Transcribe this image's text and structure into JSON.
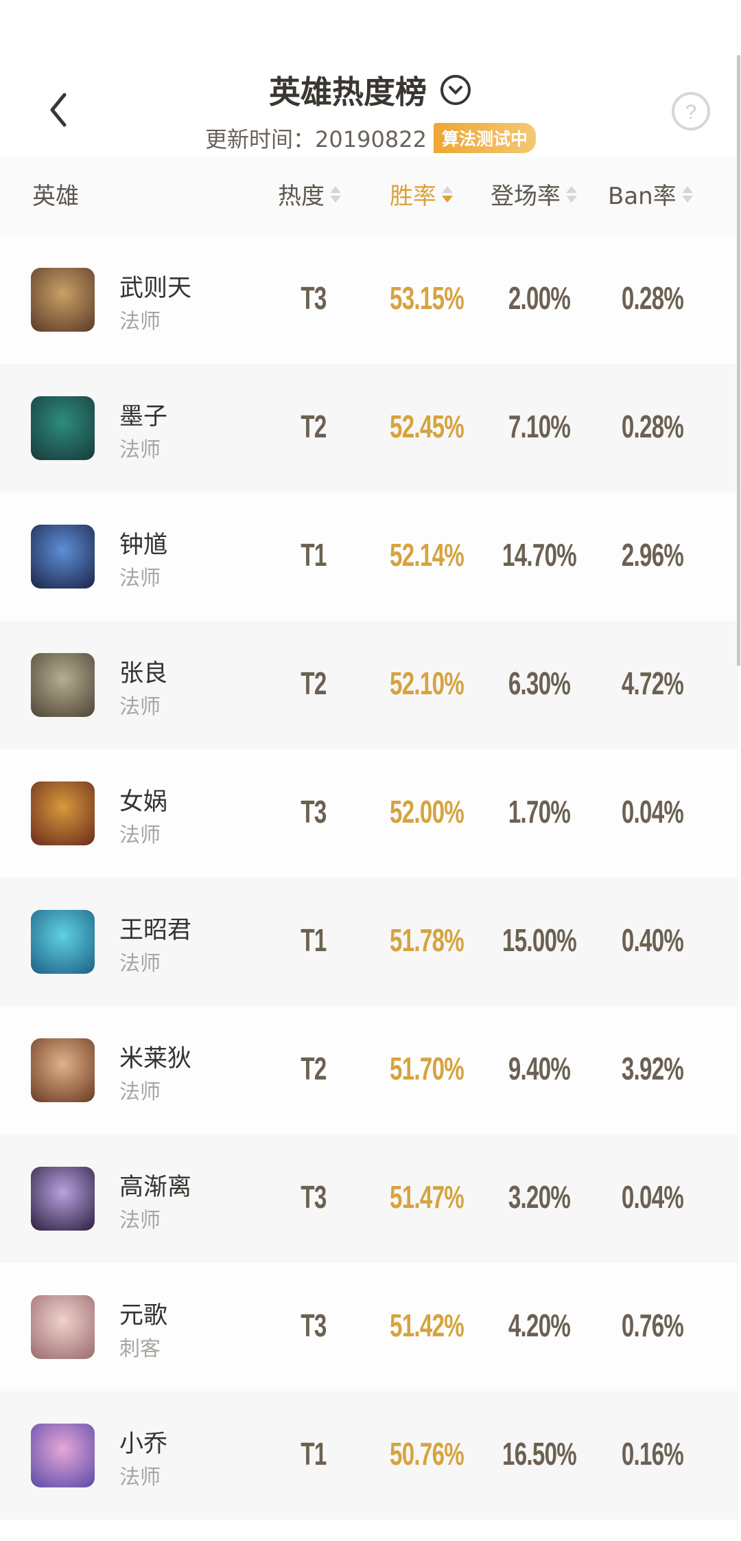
{
  "header": {
    "title": "英雄热度榜",
    "update_label": "更新时间：20190822",
    "badge": "算法测试中"
  },
  "columns": {
    "hero": "英雄",
    "heat": "热度",
    "win": "胜率",
    "pick": "登场率",
    "ban": "Ban率",
    "sorted_by": "胜率"
  },
  "heroes": [
    {
      "name": "武则天",
      "role": "法师",
      "tier": "T3",
      "win": "53.15%",
      "pick": "2.00%",
      "ban": "0.28%",
      "colors": [
        "#c9a066",
        "#5a3a28"
      ]
    },
    {
      "name": "墨子",
      "role": "法师",
      "tier": "T2",
      "win": "52.45%",
      "pick": "7.10%",
      "ban": "0.28%",
      "colors": [
        "#2d8c7e",
        "#173a3a"
      ]
    },
    {
      "name": "钟馗",
      "role": "法师",
      "tier": "T1",
      "win": "52.14%",
      "pick": "14.70%",
      "ban": "2.96%",
      "colors": [
        "#5d8fd6",
        "#1c2448"
      ]
    },
    {
      "name": "张良",
      "role": "法师",
      "tier": "T2",
      "win": "52.10%",
      "pick": "6.30%",
      "ban": "4.72%",
      "colors": [
        "#b7ad90",
        "#4c4437"
      ]
    },
    {
      "name": "女娲",
      "role": "法师",
      "tier": "T3",
      "win": "52.00%",
      "pick": "1.70%",
      "ban": "0.04%",
      "colors": [
        "#d79a3c",
        "#6a2a1c"
      ]
    },
    {
      "name": "王昭君",
      "role": "法师",
      "tier": "T1",
      "win": "51.78%",
      "pick": "15.00%",
      "ban": "0.40%",
      "colors": [
        "#5fd1e0",
        "#1d5f86"
      ]
    },
    {
      "name": "米莱狄",
      "role": "法师",
      "tier": "T2",
      "win": "51.70%",
      "pick": "9.40%",
      "ban": "3.92%",
      "colors": [
        "#e0b38a",
        "#6a3a22"
      ]
    },
    {
      "name": "高渐离",
      "role": "法师",
      "tier": "T3",
      "win": "51.47%",
      "pick": "3.20%",
      "ban": "0.04%",
      "colors": [
        "#b9a2e0",
        "#2a1f3e"
      ]
    },
    {
      "name": "元歌",
      "role": "刺客",
      "tier": "T3",
      "win": "51.42%",
      "pick": "4.20%",
      "ban": "0.76%",
      "colors": [
        "#f0d2cc",
        "#9a6a70"
      ]
    },
    {
      "name": "小乔",
      "role": "法师",
      "tier": "T1",
      "win": "50.76%",
      "pick": "16.50%",
      "ban": "0.16%",
      "colors": [
        "#e7a7d7",
        "#5a4aa8"
      ]
    }
  ]
}
